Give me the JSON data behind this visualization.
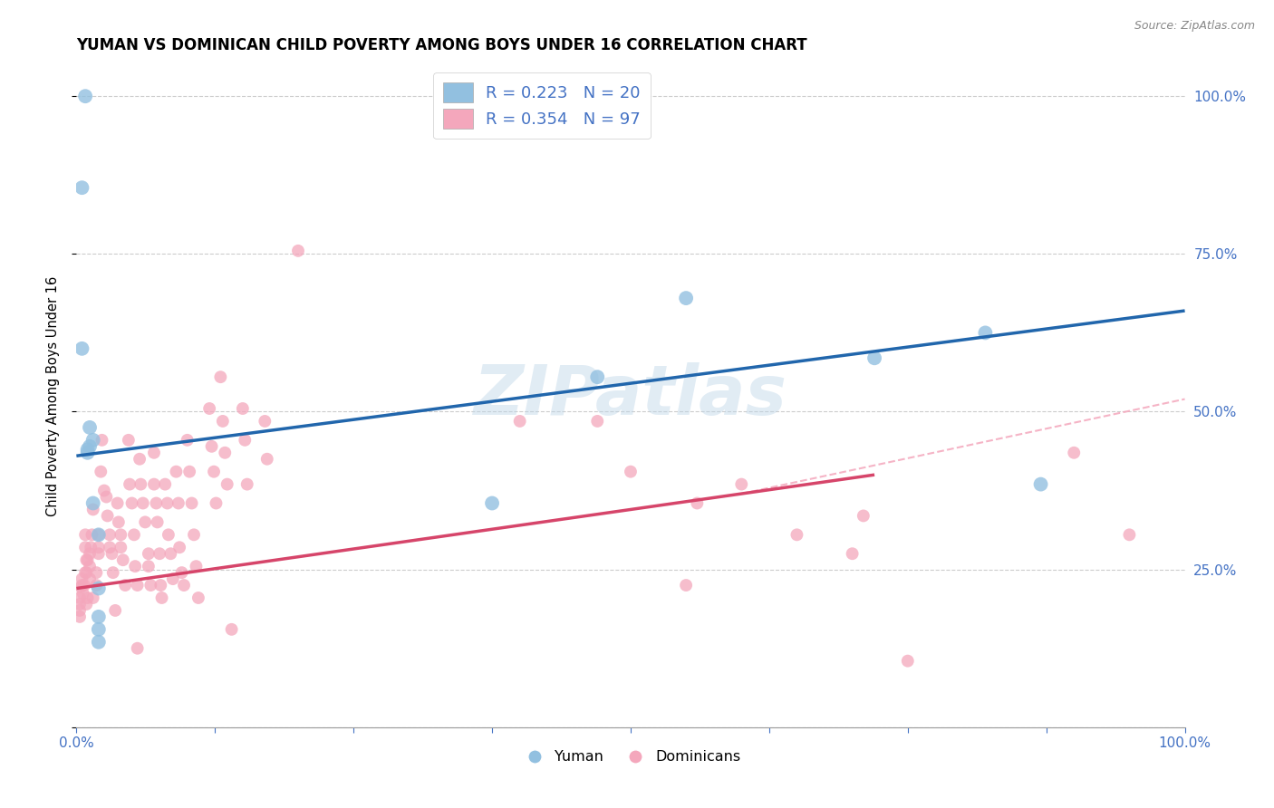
{
  "title": "YUMAN VS DOMINICAN CHILD POVERTY AMONG BOYS UNDER 16 CORRELATION CHART",
  "source": "Source: ZipAtlas.com",
  "ylabel": "Child Poverty Among Boys Under 16",
  "watermark": "ZIPatlas",
  "blue_color": "#92c0e0",
  "pink_color": "#f4a7bc",
  "blue_line_color": "#2166ac",
  "pink_line_color": "#d6456a",
  "dashed_line_color": "#f4a7bc",
  "tick_color": "#4472c4",
  "legend_text_color": "#4472c4",
  "grid_color": "#cccccc",
  "background": "#ffffff",
  "blue_scatter": [
    [
      0.008,
      1.0
    ],
    [
      0.005,
      0.855
    ],
    [
      0.005,
      0.6
    ],
    [
      0.01,
      0.44
    ],
    [
      0.012,
      0.475
    ],
    [
      0.012,
      0.445
    ],
    [
      0.015,
      0.455
    ],
    [
      0.015,
      0.355
    ],
    [
      0.02,
      0.305
    ],
    [
      0.02,
      0.22
    ],
    [
      0.02,
      0.175
    ],
    [
      0.02,
      0.155
    ],
    [
      0.02,
      0.135
    ],
    [
      0.375,
      0.355
    ],
    [
      0.47,
      0.555
    ],
    [
      0.55,
      0.68
    ],
    [
      0.72,
      0.585
    ],
    [
      0.82,
      0.625
    ],
    [
      0.87,
      0.385
    ],
    [
      0.01,
      0.435
    ]
  ],
  "pink_scatter": [
    [
      0.003,
      0.205
    ],
    [
      0.003,
      0.195
    ],
    [
      0.003,
      0.185
    ],
    [
      0.003,
      0.175
    ],
    [
      0.004,
      0.222
    ],
    [
      0.005,
      0.235
    ],
    [
      0.005,
      0.225
    ],
    [
      0.006,
      0.212
    ],
    [
      0.007,
      0.225
    ],
    [
      0.008,
      0.245
    ],
    [
      0.008,
      0.285
    ],
    [
      0.008,
      0.305
    ],
    [
      0.009,
      0.265
    ],
    [
      0.009,
      0.245
    ],
    [
      0.009,
      0.195
    ],
    [
      0.01,
      0.205
    ],
    [
      0.01,
      0.265
    ],
    [
      0.012,
      0.255
    ],
    [
      0.012,
      0.275
    ],
    [
      0.012,
      0.235
    ],
    [
      0.013,
      0.285
    ],
    [
      0.014,
      0.305
    ],
    [
      0.015,
      0.345
    ],
    [
      0.015,
      0.205
    ],
    [
      0.018,
      0.225
    ],
    [
      0.018,
      0.245
    ],
    [
      0.02,
      0.275
    ],
    [
      0.02,
      0.285
    ],
    [
      0.02,
      0.305
    ],
    [
      0.022,
      0.405
    ],
    [
      0.023,
      0.455
    ],
    [
      0.025,
      0.375
    ],
    [
      0.027,
      0.365
    ],
    [
      0.028,
      0.335
    ],
    [
      0.03,
      0.305
    ],
    [
      0.03,
      0.285
    ],
    [
      0.032,
      0.275
    ],
    [
      0.033,
      0.245
    ],
    [
      0.035,
      0.185
    ],
    [
      0.037,
      0.355
    ],
    [
      0.038,
      0.325
    ],
    [
      0.04,
      0.305
    ],
    [
      0.04,
      0.285
    ],
    [
      0.042,
      0.265
    ],
    [
      0.044,
      0.225
    ],
    [
      0.047,
      0.455
    ],
    [
      0.048,
      0.385
    ],
    [
      0.05,
      0.355
    ],
    [
      0.052,
      0.305
    ],
    [
      0.053,
      0.255
    ],
    [
      0.055,
      0.225
    ],
    [
      0.055,
      0.125
    ],
    [
      0.057,
      0.425
    ],
    [
      0.058,
      0.385
    ],
    [
      0.06,
      0.355
    ],
    [
      0.062,
      0.325
    ],
    [
      0.065,
      0.275
    ],
    [
      0.065,
      0.255
    ],
    [
      0.067,
      0.225
    ],
    [
      0.07,
      0.435
    ],
    [
      0.07,
      0.385
    ],
    [
      0.072,
      0.355
    ],
    [
      0.073,
      0.325
    ],
    [
      0.075,
      0.275
    ],
    [
      0.076,
      0.225
    ],
    [
      0.077,
      0.205
    ],
    [
      0.08,
      0.385
    ],
    [
      0.082,
      0.355
    ],
    [
      0.083,
      0.305
    ],
    [
      0.085,
      0.275
    ],
    [
      0.087,
      0.235
    ],
    [
      0.09,
      0.405
    ],
    [
      0.092,
      0.355
    ],
    [
      0.093,
      0.285
    ],
    [
      0.095,
      0.245
    ],
    [
      0.097,
      0.225
    ],
    [
      0.1,
      0.455
    ],
    [
      0.102,
      0.405
    ],
    [
      0.104,
      0.355
    ],
    [
      0.106,
      0.305
    ],
    [
      0.108,
      0.255
    ],
    [
      0.11,
      0.205
    ],
    [
      0.12,
      0.505
    ],
    [
      0.122,
      0.445
    ],
    [
      0.124,
      0.405
    ],
    [
      0.126,
      0.355
    ],
    [
      0.13,
      0.555
    ],
    [
      0.132,
      0.485
    ],
    [
      0.134,
      0.435
    ],
    [
      0.136,
      0.385
    ],
    [
      0.14,
      0.155
    ],
    [
      0.15,
      0.505
    ],
    [
      0.152,
      0.455
    ],
    [
      0.154,
      0.385
    ],
    [
      0.17,
      0.485
    ],
    [
      0.172,
      0.425
    ],
    [
      0.2,
      0.755
    ],
    [
      0.4,
      0.485
    ],
    [
      0.47,
      0.485
    ],
    [
      0.5,
      0.405
    ],
    [
      0.55,
      0.225
    ],
    [
      0.56,
      0.355
    ],
    [
      0.6,
      0.385
    ],
    [
      0.65,
      0.305
    ],
    [
      0.7,
      0.275
    ],
    [
      0.71,
      0.335
    ],
    [
      0.75,
      0.105
    ],
    [
      0.9,
      0.435
    ],
    [
      0.95,
      0.305
    ]
  ],
  "xlim": [
    0,
    1
  ],
  "ylim": [
    0,
    1.05
  ],
  "blue_line_x": [
    0.0,
    1.0
  ],
  "blue_line_y": [
    0.43,
    0.66
  ],
  "pink_line_x": [
    0.0,
    0.72
  ],
  "pink_line_y": [
    0.22,
    0.4
  ],
  "dashed_line_x": [
    0.6,
    1.0
  ],
  "dashed_line_y": [
    0.37,
    0.52
  ]
}
